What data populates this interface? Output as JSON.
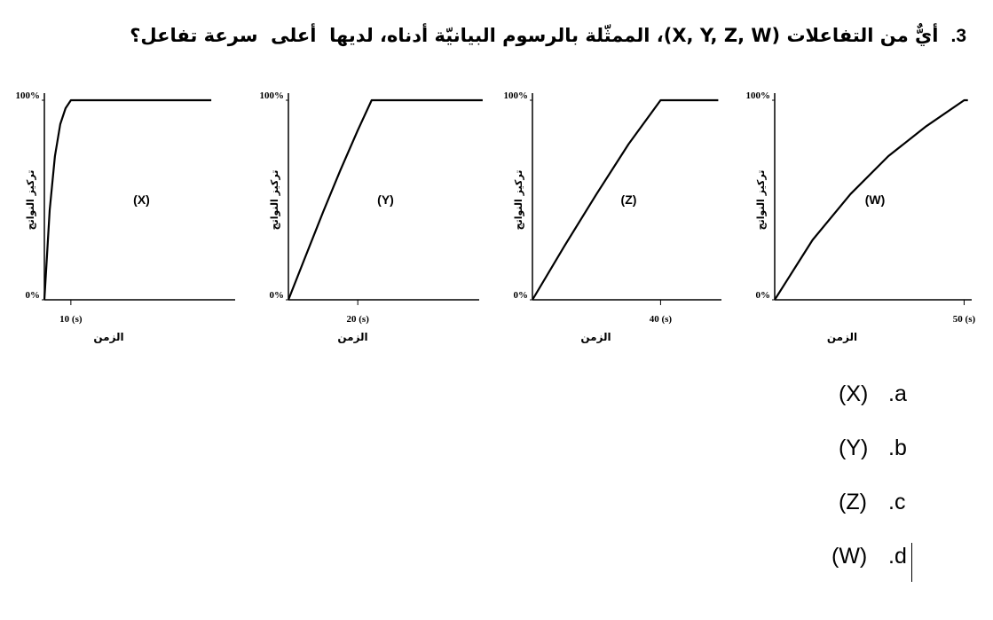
{
  "question": {
    "number": "3.",
    "text": "أيٌّ من التفاعلات (X, Y, Z, W)، الممثّلة بالرسوم البيانيّة أدناه، لديها  أعلى  سرعة تفاعل؟"
  },
  "chart_data": [
    {
      "type": "line",
      "label": "(X)",
      "xlabel": "الزمن",
      "ylabel": "تركيز النواتج",
      "color": "#000000",
      "x": [
        0,
        2,
        4,
        6,
        8,
        10,
        63
      ],
      "values": [
        0,
        45,
        72,
        88,
        96,
        100,
        100
      ],
      "xlim": [
        0,
        72
      ],
      "ylim": [
        0,
        100
      ],
      "xticks": [
        {
          "value": 10,
          "label": "10 (s)"
        }
      ],
      "yticks": [
        {
          "value": 0,
          "label": "0%"
        },
        {
          "value": 100,
          "label": "100%"
        }
      ]
    },
    {
      "type": "line",
      "label": "(Y)",
      "xlabel": "الزمن",
      "ylabel": "تركيز النواتج",
      "color": "#000000",
      "x": [
        0,
        5,
        10,
        15,
        20,
        24,
        56
      ],
      "values": [
        0,
        22,
        44,
        65,
        85,
        100,
        100
      ],
      "xlim": [
        0,
        55
      ],
      "ylim": [
        0,
        100
      ],
      "xticks": [
        {
          "value": 20,
          "label": "20 (s)"
        }
      ],
      "yticks": [
        {
          "value": 0,
          "label": "0%"
        },
        {
          "value": 100,
          "label": "100%"
        }
      ]
    },
    {
      "type": "line",
      "label": "(Z)",
      "xlabel": "الزمن",
      "ylabel": "تركيز النواتج",
      "color": "#000000",
      "x": [
        0,
        10,
        20,
        30,
        40,
        58
      ],
      "values": [
        0,
        27,
        53,
        78,
        100,
        100
      ],
      "xlim": [
        0,
        59
      ],
      "ylim": [
        0,
        100
      ],
      "xticks": [
        {
          "value": 40,
          "label": "40 (s)"
        }
      ],
      "yticks": [
        {
          "value": 0,
          "label": "0%"
        },
        {
          "value": 100,
          "label": "100%"
        }
      ]
    },
    {
      "type": "line",
      "label": "(W)",
      "xlabel": "الزمن",
      "ylabel": "تركيز النواتج",
      "color": "#000000",
      "x": [
        0,
        10,
        20,
        30,
        40,
        50,
        51
      ],
      "values": [
        0,
        30,
        53,
        72,
        87,
        100,
        100
      ],
      "xlim": [
        0,
        52
      ],
      "ylim": [
        0,
        100
      ],
      "xticks": [
        {
          "value": 50,
          "label": "50 (s)"
        }
      ],
      "yticks": [
        {
          "value": 0,
          "label": "0%"
        },
        {
          "value": 100,
          "label": "100%"
        }
      ]
    }
  ],
  "options": [
    {
      "letter": "a.",
      "answer": "(X)"
    },
    {
      "letter": "b.",
      "answer": "(Y)"
    },
    {
      "letter": "c.",
      "answer": "(Z)"
    },
    {
      "letter": "d.",
      "answer": "(W)"
    }
  ]
}
